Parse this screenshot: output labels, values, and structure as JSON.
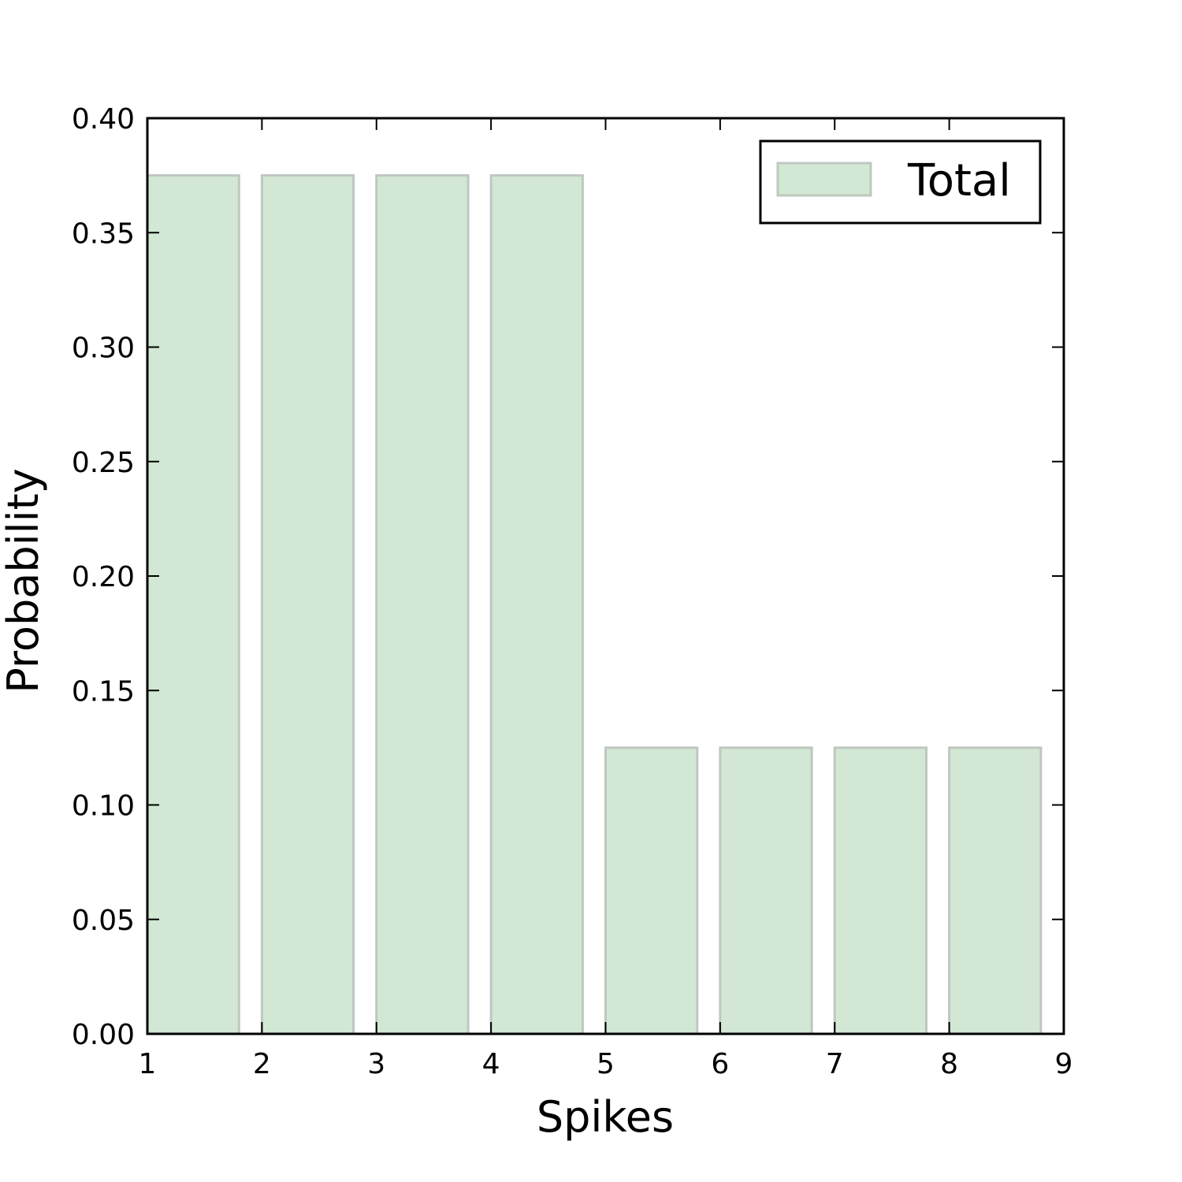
{
  "chart_data": {
    "type": "bar",
    "title": "",
    "xlabel": "Spikes",
    "ylabel": "Probability",
    "xlim": [
      1,
      9
    ],
    "ylim": [
      0,
      0.4
    ],
    "x_ticks": [
      "1",
      "2",
      "3",
      "4",
      "5",
      "6",
      "7",
      "8",
      "9"
    ],
    "y_ticks": [
      "0.00",
      "0.05",
      "0.10",
      "0.15",
      "0.20",
      "0.25",
      "0.30",
      "0.35",
      "0.40"
    ],
    "bar_left_edges": [
      1,
      2,
      3,
      4,
      5,
      6,
      7,
      8
    ],
    "bar_width": 0.8,
    "series": [
      {
        "name": "Total",
        "values": [
          0.375,
          0.375,
          0.375,
          0.375,
          0.125,
          0.125,
          0.125,
          0.125
        ],
        "color": "#d2e8d4",
        "edge_color": "#bfc7c0"
      }
    ],
    "grid": false,
    "legend_position": "top-right"
  }
}
